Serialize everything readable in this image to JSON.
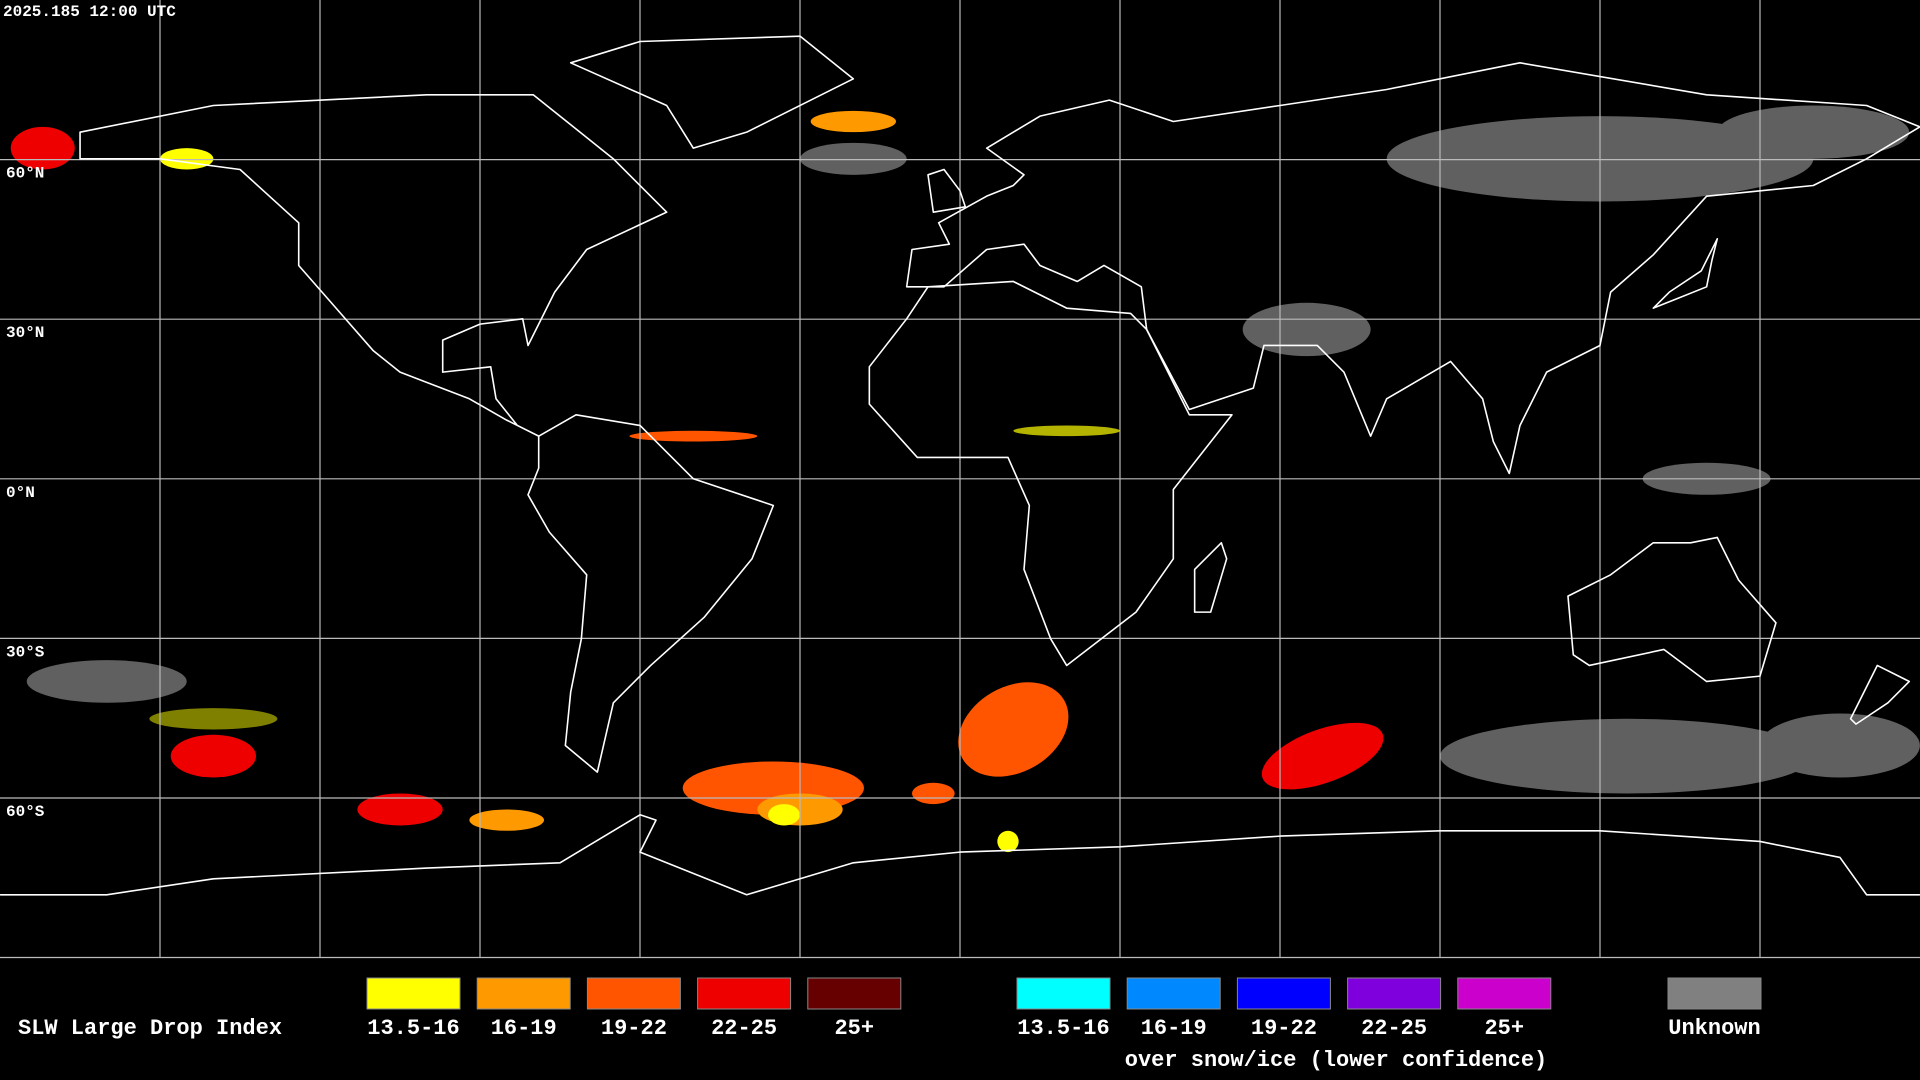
{
  "header": {
    "timestamp": "2025.185 12:00 UTC"
  },
  "map": {
    "latitude_labels": [
      "60°N",
      "30°N",
      "0°N",
      "30°S",
      "60°S"
    ]
  },
  "legend": {
    "title": "SLW Large Drop Index",
    "liquid": [
      {
        "label": "13.5-16",
        "color": "#ffff00"
      },
      {
        "label": "16-19",
        "color": "#ff9900"
      },
      {
        "label": "19-22",
        "color": "#ff5500"
      },
      {
        "label": "22-25",
        "color": "#ee0000"
      },
      {
        "label": "25+",
        "color": "#660000"
      }
    ],
    "snow_ice": [
      {
        "label": "13.5-16",
        "color": "#00ffff"
      },
      {
        "label": "16-19",
        "color": "#0088ff"
      },
      {
        "label": "19-22",
        "color": "#0000ff"
      },
      {
        "label": "22-25",
        "color": "#7f00dd"
      },
      {
        "label": "25+",
        "color": "#cc00cc"
      }
    ],
    "snow_ice_note": "over snow/ice (lower confidence)",
    "unknown": {
      "label": "Unknown",
      "color": "#808080"
    }
  }
}
